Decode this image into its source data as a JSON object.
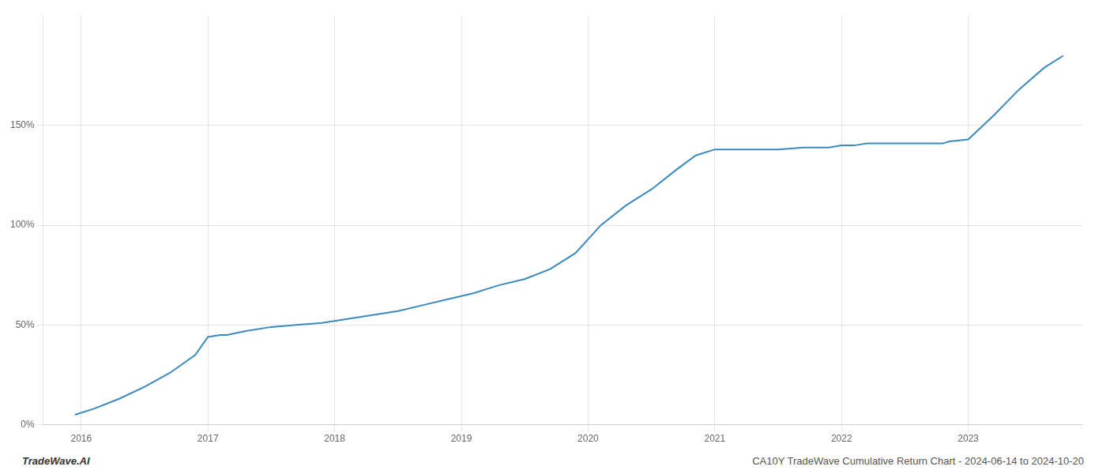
{
  "chart_data": {
    "type": "line",
    "annotations": [
      "TradeWave.AI",
      "CA10Y TradeWave Cumulative Return Chart - 2024-06-14 to 2024-10-20"
    ],
    "x": [
      2015.95,
      2016.1,
      2016.3,
      2016.5,
      2016.7,
      2016.9,
      2017.0,
      2017.1,
      2017.15,
      2017.3,
      2017.5,
      2017.7,
      2017.9,
      2018.1,
      2018.3,
      2018.5,
      2018.7,
      2018.9,
      2019.1,
      2019.2,
      2019.3,
      2019.5,
      2019.7,
      2019.9,
      2020.1,
      2020.3,
      2020.5,
      2020.7,
      2020.85,
      2021.0,
      2021.1,
      2021.2,
      2021.5,
      2021.7,
      2021.9,
      2022.0,
      2022.1,
      2022.2,
      2022.4,
      2022.6,
      2022.8,
      2022.85,
      2023.0,
      2023.2,
      2023.4,
      2023.6,
      2023.75
    ],
    "values": [
      5,
      8,
      13,
      19,
      26,
      35,
      44,
      45,
      45,
      47,
      49,
      50,
      51,
      53,
      55,
      57,
      60,
      63,
      66,
      68,
      70,
      73,
      78,
      86,
      100,
      110,
      118,
      128,
      135,
      138,
      138,
      138,
      138,
      139,
      139,
      140,
      140,
      141,
      141,
      141,
      141,
      142,
      143,
      155,
      168,
      179,
      185
    ],
    "color": "#3a8abf",
    "xlim": [
      2015.7,
      2023.9
    ],
    "ylim": [
      0,
      205
    ],
    "xticks": [
      2016,
      2017,
      2018,
      2019,
      2020,
      2021,
      2022,
      2023
    ],
    "yticks": [
      {
        "value": 0,
        "label": "0%"
      },
      {
        "value": 50,
        "label": "50%"
      },
      {
        "value": 100,
        "label": "100%"
      },
      {
        "value": 150,
        "label": "150%"
      }
    ],
    "grid": true
  }
}
